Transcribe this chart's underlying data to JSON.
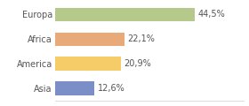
{
  "categories": [
    "Europa",
    "Africa",
    "America",
    "Asia"
  ],
  "values": [
    44.5,
    22.1,
    20.9,
    12.6
  ],
  "labels": [
    "44,5%",
    "22,1%",
    "20,9%",
    "12,6%"
  ],
  "bar_colors": [
    "#b5c98a",
    "#e8aa78",
    "#f5cc68",
    "#7b8ec8"
  ],
  "background_color": "#ffffff",
  "xlim": [
    0,
    60
  ],
  "bar_height": 0.55,
  "label_fontsize": 7,
  "category_fontsize": 7,
  "figsize": [
    2.8,
    1.2
  ],
  "dpi": 100
}
